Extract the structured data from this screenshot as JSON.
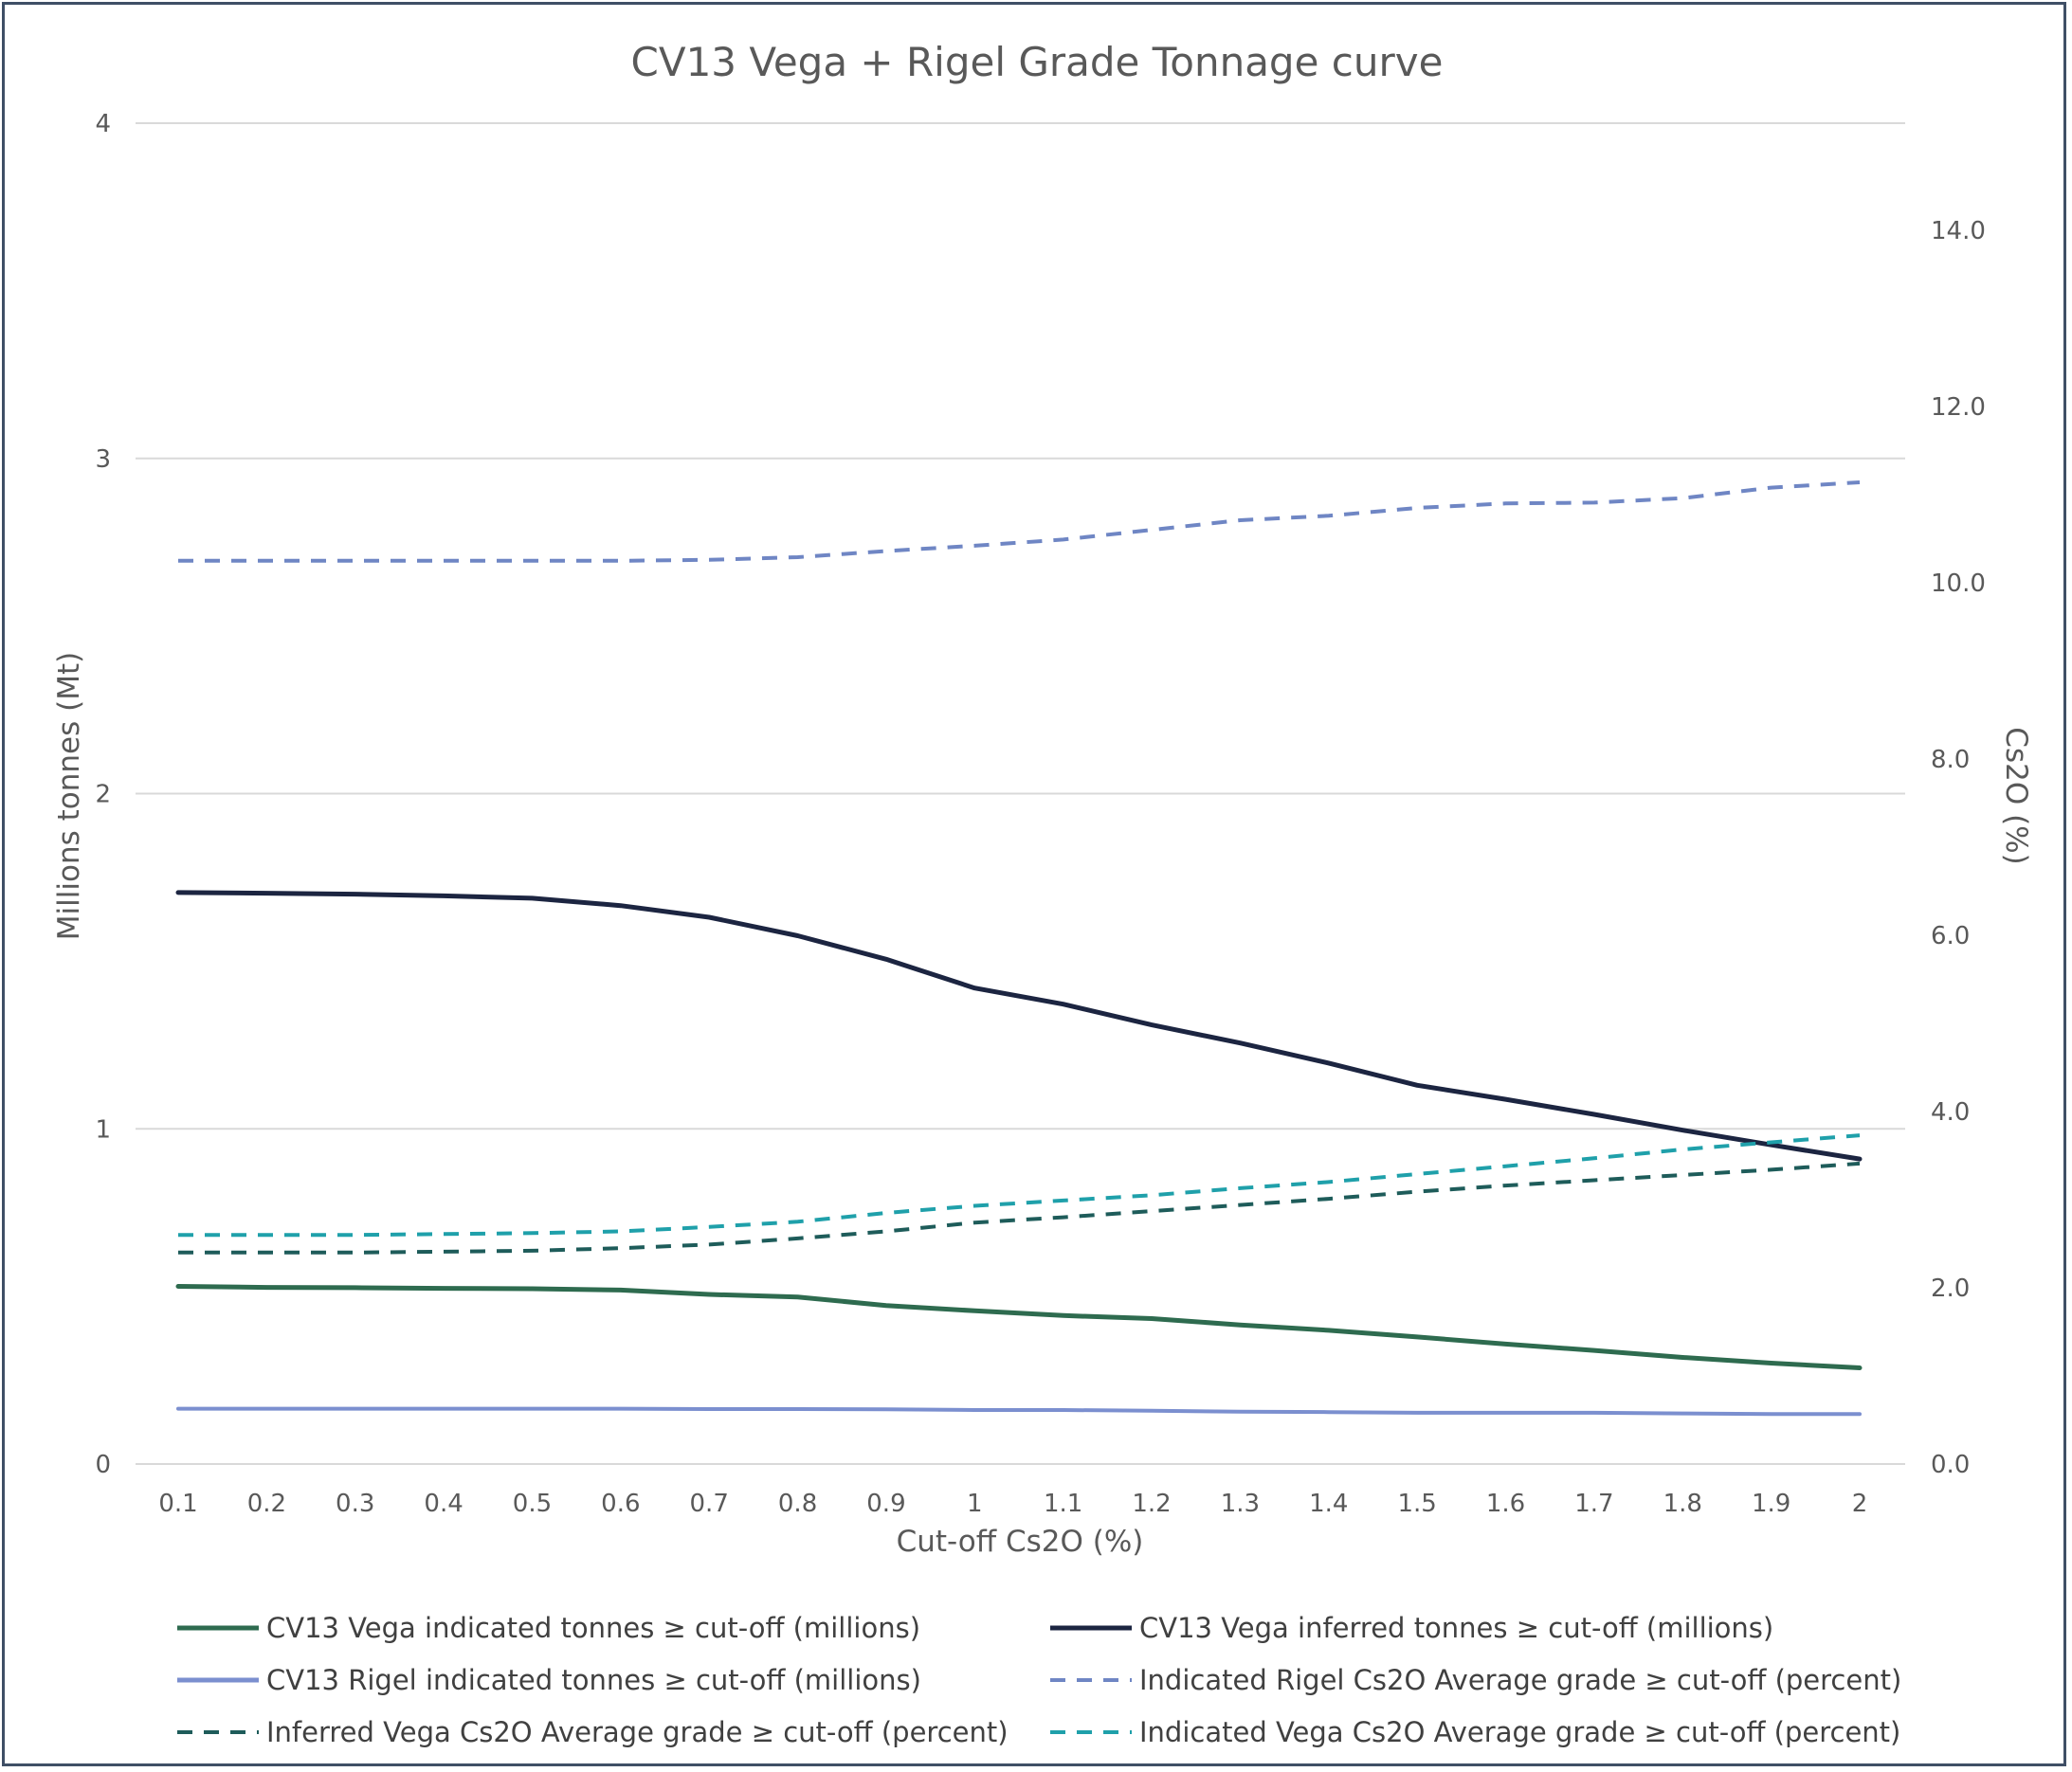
{
  "chart_data": {
    "type": "line",
    "title": "CV13 Vega + Rigel Grade Tonnage curve",
    "xlabel": "Cut-off Cs2O (%)",
    "ylabel": "Millions tonnes (Mt)",
    "y2label": "Cs2O (%)",
    "x": [
      "0.1",
      "0.2",
      "0.3",
      "0.4",
      "0.5",
      "0.6",
      "0.7",
      "0.8",
      "0.9",
      "1",
      "1.1",
      "1.2",
      "1.3",
      "1.4",
      "1.5",
      "1.6",
      "1.7",
      "1.8",
      "1.9",
      "2"
    ],
    "ylim": [
      0,
      4
    ],
    "yticks": [
      "0",
      "1",
      "2",
      "3",
      "4"
    ],
    "y2lim": [
      0,
      15
    ],
    "y2ticks": [
      "0.0",
      "2.0",
      "4.0",
      "6.0",
      "8.0",
      "10.0",
      "12.0",
      "14.0"
    ],
    "grid": true,
    "legend_position": "bottom",
    "series": [
      {
        "name": "CV13 Vega indicated tonnes ≥ cut-off (millions)",
        "axis": "left",
        "style": "solid",
        "color": "#2e6b4f",
        "values": [
          0.53,
          0.527,
          0.526,
          0.524,
          0.523,
          0.519,
          0.506,
          0.498,
          0.473,
          0.457,
          0.443,
          0.434,
          0.415,
          0.399,
          0.379,
          0.358,
          0.339,
          0.318,
          0.301,
          0.287
        ]
      },
      {
        "name": "CV13 Vega inferred tonnes ≥ cut-off (millions)",
        "axis": "left",
        "style": "solid",
        "color": "#1c2541",
        "values": [
          1.705,
          1.703,
          1.7,
          1.695,
          1.688,
          1.666,
          1.631,
          1.576,
          1.506,
          1.42,
          1.372,
          1.31,
          1.256,
          1.196,
          1.13,
          1.088,
          1.043,
          0.996,
          0.952,
          0.91
        ]
      },
      {
        "name": "CV13 Rigel indicated tonnes ≥ cut-off (millions)",
        "axis": "left",
        "style": "solid",
        "color": "#7b8fcf",
        "values": [
          0.165,
          0.165,
          0.165,
          0.165,
          0.165,
          0.165,
          0.164,
          0.164,
          0.163,
          0.161,
          0.161,
          0.159,
          0.156,
          0.155,
          0.153,
          0.153,
          0.153,
          0.151,
          0.149,
          0.149
        ]
      },
      {
        "name": "Indicated Rigel Cs2O Average grade ≥ cut-off (percent)",
        "axis": "right",
        "style": "dashed",
        "color": "#6f86c4",
        "values": [
          10.25,
          10.25,
          10.25,
          10.25,
          10.25,
          10.25,
          10.26,
          10.29,
          10.36,
          10.42,
          10.49,
          10.6,
          10.71,
          10.76,
          10.85,
          10.9,
          10.91,
          10.96,
          11.08,
          11.14
        ]
      },
      {
        "name": "Inferred Vega Cs2O Average grade ≥ cut-off (percent)",
        "axis": "right",
        "style": "dashed",
        "color": "#1e5c5a",
        "values": [
          2.4,
          2.4,
          2.4,
          2.41,
          2.42,
          2.45,
          2.49,
          2.56,
          2.64,
          2.74,
          2.8,
          2.87,
          2.94,
          3.01,
          3.09,
          3.16,
          3.22,
          3.28,
          3.34,
          3.41
        ]
      },
      {
        "name": "Indicated Vega Cs2O Average grade ≥ cut-off (percent)",
        "axis": "right",
        "style": "dashed",
        "color": "#1fa0aa",
        "values": [
          2.6,
          2.6,
          2.6,
          2.61,
          2.62,
          2.64,
          2.69,
          2.75,
          2.85,
          2.93,
          2.99,
          3.05,
          3.13,
          3.2,
          3.29,
          3.38,
          3.47,
          3.57,
          3.65,
          3.73
        ]
      }
    ]
  }
}
